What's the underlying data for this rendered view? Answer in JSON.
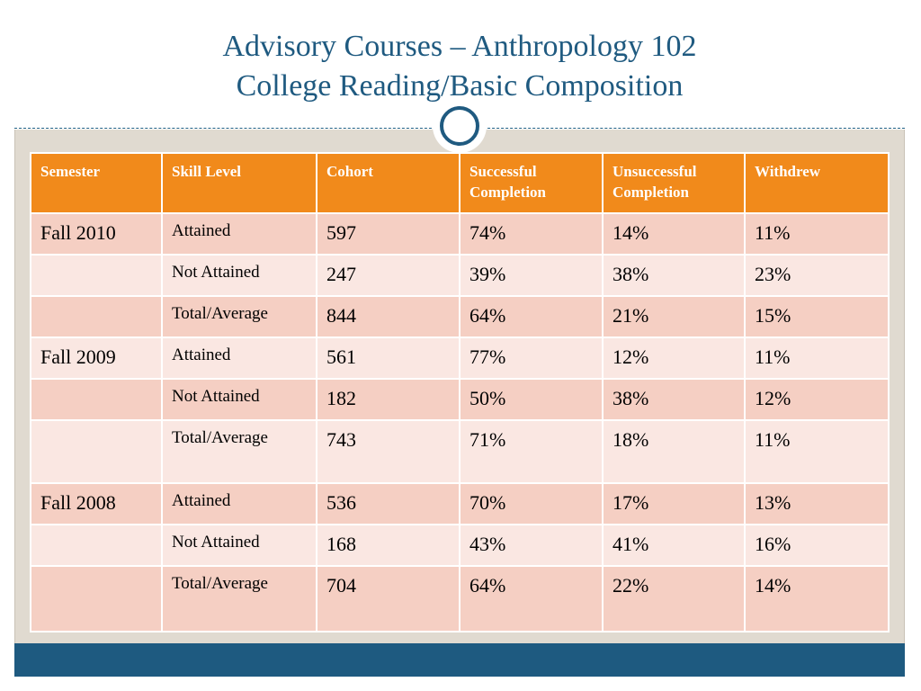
{
  "title": {
    "line1": "Advisory Courses – Anthropology 102",
    "line2": "College Reading/Basic Composition"
  },
  "colors": {
    "title": "#1f5a80",
    "header_bg": "#f18a1b",
    "row_dark": "#f5cfc3",
    "row_light": "#fae7e2",
    "footer_bar": "#1e5a80",
    "frame_bg": "#e0dad0"
  },
  "table": {
    "headers": {
      "semester": "Semester",
      "skill_level": "Skill Level",
      "cohort": "Cohort",
      "successful_line1": "Successful",
      "successful_line2": "Completion",
      "unsuccessful_line1": "Unsuccessful",
      "unsuccessful_line2": "Completion",
      "withdrew": "Withdrew"
    },
    "rows": [
      {
        "semester": "Fall 2010",
        "skill": "Attained",
        "cohort": "597",
        "successful": "74%",
        "unsuccessful": "14%",
        "withdrew": "11%"
      },
      {
        "semester": "",
        "skill": "Not Attained",
        "cohort": "247",
        "successful": "39%",
        "unsuccessful": "38%",
        "withdrew": "23%"
      },
      {
        "semester": "",
        "skill": "Total/Average",
        "cohort": "844",
        "successful": "64%",
        "unsuccessful": "21%",
        "withdrew": "15%"
      },
      {
        "semester": "Fall 2009",
        "skill": "Attained",
        "cohort": "561",
        "successful": "77%",
        "unsuccessful": "12%",
        "withdrew": "11%"
      },
      {
        "semester": "",
        "skill": "Not Attained",
        "cohort": "182",
        "successful": "50%",
        "unsuccessful": "38%",
        "withdrew": "12%"
      },
      {
        "semester": "",
        "skill": "Total/Average",
        "cohort": "743",
        "successful": "71%",
        "unsuccessful": "18%",
        "withdrew": "11%"
      },
      {
        "semester": "Fall 2008",
        "skill": "Attained",
        "cohort": "536",
        "successful": "70%",
        "unsuccessful": "17%",
        "withdrew": "13%"
      },
      {
        "semester": "",
        "skill": "Not Attained",
        "cohort": "168",
        "successful": "43%",
        "unsuccessful": "41%",
        "withdrew": "16%"
      },
      {
        "semester": "",
        "skill": "Total/Average",
        "cohort": "704",
        "successful": "64%",
        "unsuccessful": "22%",
        "withdrew": "14%"
      }
    ]
  }
}
